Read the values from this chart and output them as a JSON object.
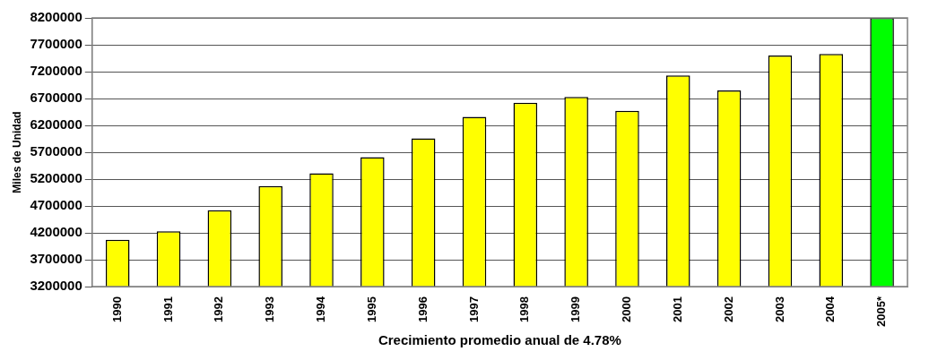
{
  "chart_data": {
    "type": "bar",
    "xlabel": "Crecimiento promedio anual de 4.78%",
    "ylabel": "Miles de Unidad",
    "categories": [
      "1990",
      "1991",
      "1992",
      "1993",
      "1994",
      "1995",
      "1996",
      "1997",
      "1998",
      "1999",
      "2000",
      "2001",
      "2002",
      "2003",
      "2004",
      "2005*"
    ],
    "values": [
      4070000,
      4230000,
      4620000,
      5070000,
      5310000,
      5610000,
      5960000,
      6360000,
      6620000,
      6730000,
      6470000,
      7130000,
      6850000,
      7500000,
      7530000,
      8200000
    ],
    "colors": [
      "#ffff00",
      "#ffff00",
      "#ffff00",
      "#ffff00",
      "#ffff00",
      "#ffff00",
      "#ffff00",
      "#ffff00",
      "#ffff00",
      "#ffff00",
      "#ffff00",
      "#ffff00",
      "#ffff00",
      "#ffff00",
      "#ffff00",
      "#00ff00"
    ],
    "ylim": [
      3200000,
      8200000
    ],
    "yticks": [
      3200000,
      3700000,
      4200000,
      4700000,
      5200000,
      5700000,
      6200000,
      6700000,
      7200000,
      7700000,
      8200000
    ],
    "grid": "y",
    "legend": false
  }
}
